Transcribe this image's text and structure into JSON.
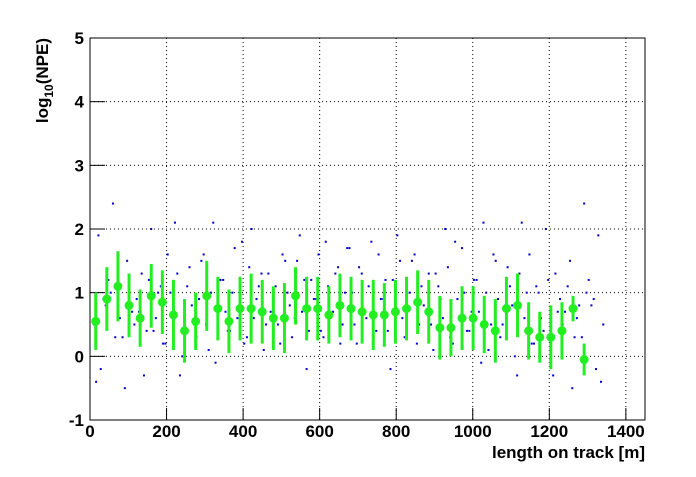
{
  "chart_data": {
    "type": "scatter",
    "x_label": "length on track [m]",
    "y_label_parts": [
      "log",
      "10",
      "(NPE)"
    ],
    "xlim": [
      0,
      1450
    ],
    "ylim": [
      -1,
      5
    ],
    "xticks": [
      0,
      200,
      400,
      600,
      800,
      1000,
      1200,
      1400
    ],
    "yticks": [
      -1,
      0,
      1,
      2,
      3,
      4,
      5
    ],
    "grid": true,
    "points": {
      "color": "#0000cc",
      "x": [
        10,
        22,
        35,
        48,
        60,
        72,
        85,
        97,
        110,
        122,
        135,
        148,
        160,
        172,
        185,
        197,
        210,
        222,
        235,
        248,
        260,
        272,
        285,
        297,
        310,
        322,
        335,
        348,
        360,
        372,
        385,
        397,
        410,
        422,
        435,
        448,
        460,
        472,
        485,
        497,
        510,
        522,
        535,
        548,
        560,
        572,
        585,
        597,
        610,
        622,
        635,
        648,
        660,
        672,
        685,
        697,
        710,
        722,
        735,
        748,
        760,
        772,
        785,
        797,
        810,
        822,
        835,
        848,
        860,
        872,
        885,
        897,
        910,
        922,
        935,
        948,
        960,
        972,
        985,
        997,
        1010,
        1022,
        1035,
        1048,
        1060,
        1072,
        1085,
        1097,
        1110,
        1122,
        1135,
        1148,
        1160,
        1172,
        1185,
        1197,
        1210,
        1222,
        1235,
        1248,
        1260,
        1272,
        1285,
        1297,
        1310,
        1322,
        1335,
        16,
        28,
        41,
        54,
        66,
        78,
        91,
        103,
        116,
        128,
        141,
        154,
        166,
        178,
        191,
        203,
        216,
        228,
        241,
        254,
        266,
        278,
        291,
        303,
        316,
        328,
        341,
        354,
        366,
        378,
        391,
        403,
        416,
        428,
        441,
        454,
        466,
        478,
        491,
        503,
        516,
        528,
        541,
        554,
        566,
        578,
        591,
        603,
        616,
        628,
        641,
        654,
        666,
        678,
        691,
        703,
        716,
        728,
        741,
        754,
        766,
        778,
        791,
        803,
        816,
        828,
        841,
        854,
        866,
        878,
        891,
        903,
        916,
        928,
        941,
        954,
        966,
        978,
        991,
        1003,
        1016,
        1028,
        1041,
        1054,
        1066,
        1078,
        1091,
        1103,
        1116,
        1128,
        1141,
        1154,
        1166,
        1178,
        1191,
        1203,
        1216,
        1228,
        1241,
        1254,
        1266,
        1278,
        1291,
        1303,
        1316,
        1328,
        1341
      ],
      "y": [
        0.5,
        1.9,
        0.9,
        1.2,
        2.4,
        0.8,
        0.3,
        1.5,
        0.7,
        0.9,
        1.3,
        0.4,
        2.0,
        0.6,
        1.1,
        0.2,
        1.0,
        2.1,
        -0.3,
        0.8,
        1.4,
        0.5,
        0.9,
        1.6,
        0.1,
        2.1,
        0.7,
        1.2,
        0.4,
        1.0,
        0.6,
        1.8,
        0.3,
        2.0,
        0.9,
        1.3,
        0.5,
        0.7,
        1.1,
        0.2,
        1.5,
        0.8,
        0.6,
        1.9,
        1.2,
        0.4,
        0.9,
        1.6,
        0.3,
        1.1,
        0.7,
        1.4,
        0.5,
        1.7,
        1.0,
        0.2,
        1.3,
        0.6,
        1.8,
        0.4,
        0.9,
        1.2,
        -0.2,
        0.7,
        1.5,
        0.3,
        1.0,
        1.6,
        0.5,
        0.8,
        1.3,
        0.1,
        1.1,
        0.6,
        1.4,
        0.2,
        0.9,
        1.7,
        0.4,
        0.7,
        1.2,
        -0.1,
        1.0,
        0.5,
        1.5,
        0.3,
        0.8,
        1.1,
        0.0,
        1.3,
        0.6,
        1.6,
        0.2,
        1.0,
        0.4,
        1.2,
        -0.3,
        0.7,
        0.5,
        1.1,
        -0.5,
        0.6,
        0.3,
        1.0,
        0.8,
        -0.2,
        -0.4,
        -0.4,
        -0.2,
        0.8,
        1.0,
        0.3,
        0.6,
        -0.5,
        1.1,
        0.5,
        0.7,
        -0.3,
        1.2,
        0.4,
        1.0,
        0.2,
        1.6,
        0.6,
        1.3,
        0.0,
        1.1,
        0.8,
        0.3,
        1.5,
        0.5,
        1.0,
        -0.1,
        1.2,
        0.7,
        0.4,
        1.7,
        0.9,
        0.2,
        1.4,
        0.6,
        1.1,
        0.1,
        1.3,
        0.8,
        0.5,
        1.6,
        1.0,
        0.3,
        1.5,
        0.7,
        -0.2,
        1.2,
        0.9,
        0.4,
        1.8,
        0.6,
        1.3,
        0.2,
        1.0,
        1.7,
        0.5,
        1.4,
        0.7,
        1.1,
        0.3,
        1.6,
        0.9,
        0.4,
        1.2,
        1.9,
        0.6,
        0.8,
        1.5,
        0.2,
        1.1,
        0.7,
        0.5,
        1.3,
        0.9,
        2.0,
        0.3,
        1.8,
        0.6,
        1.0,
        0.4,
        1.2,
        0.7,
        2.1,
        0.1,
        1.6,
        0.9,
        0.5,
        1.4,
        0.8,
        -0.3,
        2.1,
        1.0,
        0.2,
        1.1,
        0.6,
        2.0,
        0.4,
        1.3,
        0.9,
        0.7,
        1.5,
        0.3,
        0.8,
        2.4,
        1.2,
        0.9,
        1.9,
        0.5
      ]
    },
    "profile": {
      "color": "#22ee22",
      "x": [
        15,
        44,
        73,
        102,
        131,
        160,
        189,
        218,
        247,
        276,
        305,
        334,
        363,
        392,
        421,
        450,
        479,
        508,
        537,
        566,
        595,
        624,
        653,
        682,
        711,
        740,
        769,
        798,
        827,
        856,
        885,
        914,
        943,
        972,
        1001,
        1030,
        1059,
        1088,
        1117,
        1146,
        1175,
        1204,
        1233,
        1262,
        1291
      ],
      "values": [
        0.55,
        0.9,
        1.1,
        0.8,
        0.6,
        0.95,
        0.85,
        0.65,
        0.4,
        0.55,
        0.95,
        0.75,
        0.55,
        0.75,
        0.75,
        0.7,
        0.6,
        0.6,
        0.95,
        0.75,
        0.75,
        0.65,
        0.8,
        0.75,
        0.7,
        0.65,
        0.65,
        0.7,
        0.75,
        0.85,
        0.7,
        0.45,
        0.45,
        0.6,
        0.6,
        0.5,
        0.4,
        0.75,
        0.8,
        0.4,
        0.3,
        0.3,
        0.4,
        0.75,
        -0.05
      ],
      "errors": [
        0.45,
        0.5,
        0.55,
        0.5,
        0.45,
        0.5,
        0.5,
        0.55,
        0.5,
        0.45,
        0.55,
        0.5,
        0.5,
        0.5,
        0.55,
        0.5,
        0.5,
        0.55,
        0.45,
        0.5,
        0.5,
        0.45,
        0.5,
        0.5,
        0.5,
        0.55,
        0.5,
        0.5,
        0.5,
        0.5,
        0.5,
        0.5,
        0.45,
        0.5,
        0.5,
        0.45,
        0.5,
        0.5,
        0.5,
        0.45,
        0.4,
        0.5,
        0.45,
        0.2,
        0.25
      ]
    }
  }
}
